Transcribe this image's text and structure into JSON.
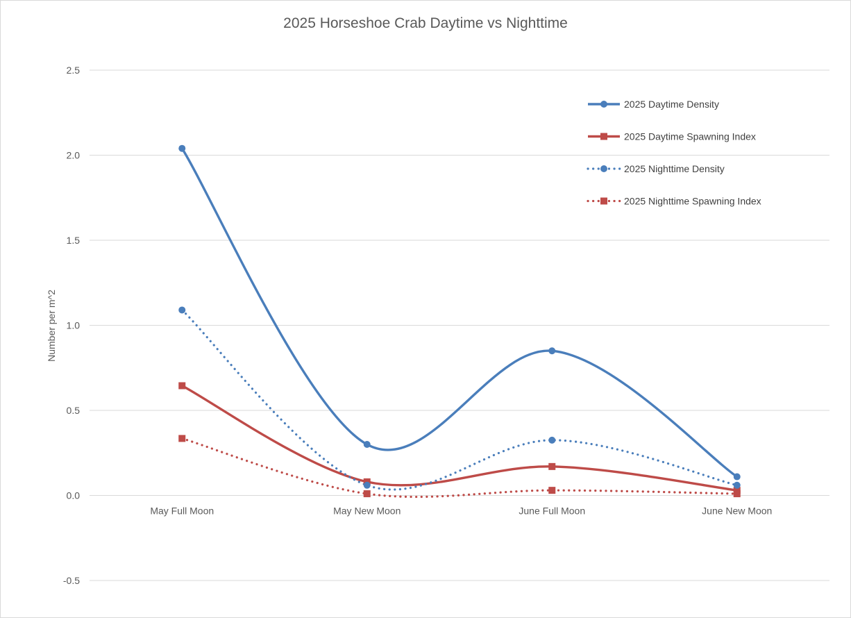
{
  "chart_data": {
    "type": "line",
    "title": "2025 Horseshoe Crab Daytime vs Nighttime",
    "xlabel": "",
    "ylabel": "Number per m^2",
    "categories": [
      "May Full Moon",
      "May New Moon",
      "June Full Moon",
      "June New Moon"
    ],
    "ylim": [
      -0.5,
      2.5
    ],
    "yticks": [
      "2.5",
      "2.0",
      "1.5",
      "1.0",
      "0.5",
      "0.0",
      "-0.5"
    ],
    "grid": true,
    "smooth": true,
    "legend_position": "top-right",
    "series": [
      {
        "name": "2025 Daytime Density",
        "values": [
          2.04,
          0.3,
          0.85,
          0.11
        ],
        "color": "#4a7ebb",
        "line_style": "solid",
        "marker": "circle"
      },
      {
        "name": "2025 Daytime Spawning Index",
        "values": [
          0.645,
          0.08,
          0.17,
          0.03
        ],
        "color": "#be4b48",
        "line_style": "solid",
        "marker": "square"
      },
      {
        "name": "2025 Nighttime Density",
        "values": [
          1.09,
          0.06,
          0.325,
          0.06
        ],
        "color": "#4a7ebb",
        "line_style": "dotted",
        "marker": "circle"
      },
      {
        "name": "2025 Nighttime Spawning Index",
        "values": [
          0.335,
          0.01,
          0.03,
          0.01
        ],
        "color": "#be4b48",
        "line_style": "dotted",
        "marker": "square"
      }
    ]
  }
}
